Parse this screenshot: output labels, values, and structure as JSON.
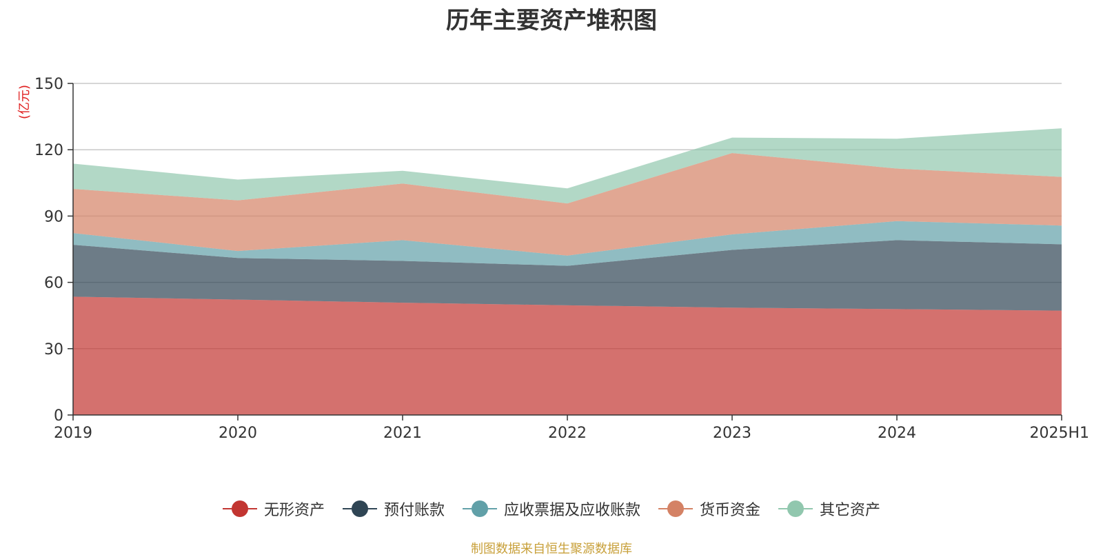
{
  "chart_data": {
    "type": "area",
    "stacked": true,
    "title": "历年主要资产堆积图",
    "ylabel": "(亿元)",
    "ylim": [
      0,
      150
    ],
    "yticks": [
      0,
      30,
      60,
      90,
      120,
      150
    ],
    "categories": [
      "2019",
      "2020",
      "2021",
      "2022",
      "2023",
      "2024",
      "2025H1"
    ],
    "grid": true,
    "legend_position": "bottom",
    "series": [
      {
        "name": "无形资产",
        "color": "#c23531",
        "values": [
          53.5,
          52.2,
          50.8,
          49.6,
          48.6,
          47.9,
          47.2
        ]
      },
      {
        "name": "预付账款",
        "color": "#2f4554",
        "values": [
          23.5,
          18.8,
          18.9,
          17.9,
          26.1,
          31.2,
          30.0
        ]
      },
      {
        "name": "应收票据及应收账款",
        "color": "#61a0a8",
        "values": [
          5.3,
          3.2,
          9.4,
          4.6,
          7.0,
          8.6,
          8.5
        ]
      },
      {
        "name": "货币资金",
        "color": "#d48265",
        "values": [
          20.0,
          22.9,
          25.6,
          23.6,
          36.8,
          23.8,
          22.0
        ]
      },
      {
        "name": "其它资产",
        "color": "#91c7ae",
        "values": [
          11.4,
          9.4,
          5.8,
          6.8,
          7.0,
          13.5,
          22.0
        ]
      }
    ]
  },
  "source_note": "制图数据来自恒生聚源数据库"
}
